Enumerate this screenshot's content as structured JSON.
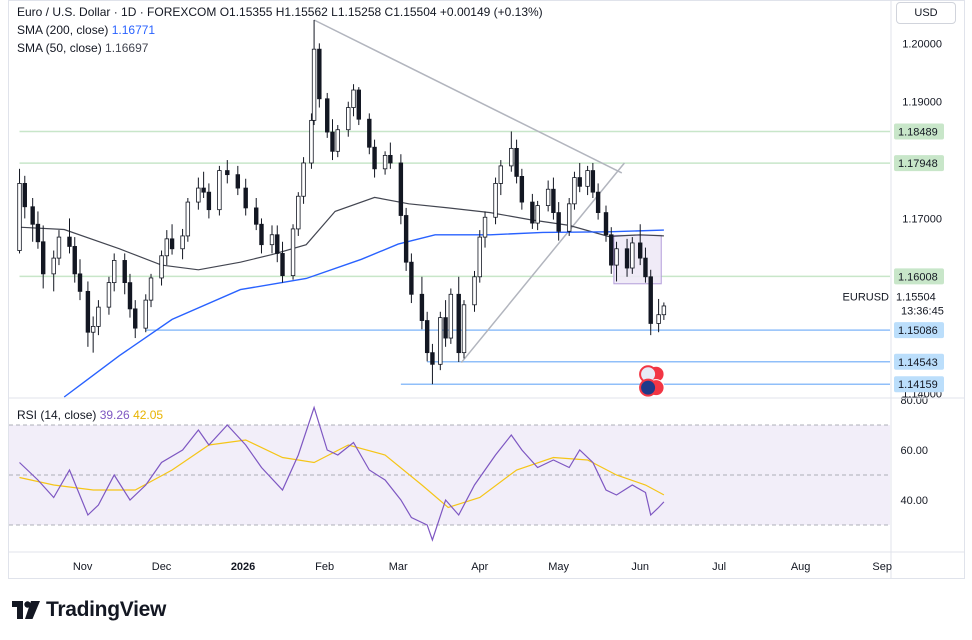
{
  "header": {
    "symbol_line": "Euro / U.S. Dollar · 1D · FOREXCOM",
    "ohlc": "O1.15355  H1.15562  L1.15258  C1.15504",
    "change": "+0.00149 (+0.13%)",
    "sma200_label": "SMA (200, close)",
    "sma200_value": "1.16771",
    "sma50_label": "SMA (50, close)",
    "sma50_value": "1.16697"
  },
  "currency_button": "USD",
  "rsi_legend": {
    "label": "RSI (14, close)",
    "value": "39.26",
    "signal": "42.05"
  },
  "brand": "TradingView",
  "symbol_tag": "EURUSD",
  "countdown": "13:36:45",
  "colors": {
    "candle": "#131722",
    "sma200": "#2962ff",
    "sma50": "#434651",
    "support_green": "#c8e6c9",
    "support_blue": "#90bff9",
    "rsi_line": "#7e57c2",
    "rsi_signal": "#f5c518",
    "rsi_band": "#ede7f6",
    "trendline": "#b2b5be"
  },
  "chart_data": {
    "type": "candlestick",
    "timeframe": "1D",
    "y_range": [
      1.1394,
      1.204
    ],
    "price_ticks": [
      "1.20000",
      "1.19000",
      "1.17000",
      "1.14000"
    ],
    "x_tick_labels": [
      "Nov",
      "Dec",
      "2026",
      "Feb",
      "Mar",
      "Apr",
      "May",
      "Jun",
      "Jul",
      "Aug",
      "Sep"
    ],
    "price_tags": [
      {
        "label": "1.18489",
        "value": 1.18489,
        "kind": "green"
      },
      {
        "label": "1.17948",
        "value": 1.17948,
        "kind": "green"
      },
      {
        "label": "1.16008",
        "value": 1.16008,
        "kind": "green"
      },
      {
        "label": "1.15504",
        "value": 1.15504,
        "kind": "last"
      },
      {
        "label": "1.15086",
        "value": 1.15086,
        "kind": "blue"
      },
      {
        "label": "1.14543",
        "value": 1.14543,
        "kind": "blue"
      },
      {
        "label": "1.14159",
        "value": 1.14159,
        "kind": "blue"
      }
    ],
    "sma50_points": [
      [
        "2025-10-08",
        1.1685
      ],
      [
        "2025-10-25",
        1.1681
      ],
      [
        "2025-11-15",
        1.1648
      ],
      [
        "2025-12-01",
        1.162
      ],
      [
        "2025-12-15",
        1.1612
      ],
      [
        "2025-12-31",
        1.1625
      ],
      [
        "2026-01-12",
        1.1638
      ],
      [
        "2026-01-25",
        1.1655
      ],
      [
        "2026-02-05",
        1.1712
      ],
      [
        "2026-02-20",
        1.1736
      ],
      [
        "2026-03-05",
        1.1725
      ],
      [
        "2026-03-20",
        1.1718
      ],
      [
        "2026-04-05",
        1.171
      ],
      [
        "2026-04-20",
        1.1698
      ],
      [
        "2026-05-05",
        1.1688
      ],
      [
        "2026-05-20",
        1.1669
      ],
      [
        "2026-06-01",
        1.1672
      ],
      [
        "2026-06-10",
        1.167
      ]
    ],
    "sma200_points": [
      [
        "2025-10-25",
        1.1394
      ],
      [
        "2025-11-15",
        1.1465
      ],
      [
        "2025-12-05",
        1.1527
      ],
      [
        "2025-12-31",
        1.1578
      ],
      [
        "2026-01-25",
        1.1597
      ],
      [
        "2026-02-15",
        1.163
      ],
      [
        "2026-03-01",
        1.1656
      ],
      [
        "2026-03-15",
        1.1672
      ],
      [
        "2026-04-05",
        1.1672
      ],
      [
        "2026-04-25",
        1.1676
      ],
      [
        "2026-05-20",
        1.1677
      ],
      [
        "2026-06-10",
        1.168
      ]
    ],
    "horizontal_levels": [
      {
        "value": 1.18489,
        "kind": "green",
        "from": "2025-10-08"
      },
      {
        "value": 1.17948,
        "kind": "green",
        "from": "2025-10-08"
      },
      {
        "value": 1.16008,
        "kind": "green",
        "from": "2025-10-08"
      },
      {
        "value": 1.15086,
        "kind": "blue",
        "from": "2025-11-25"
      },
      {
        "value": 1.14543,
        "kind": "blue",
        "from": "2026-03-12"
      },
      {
        "value": 1.14159,
        "kind": "blue",
        "from": "2026-03-02"
      }
    ],
    "trendlines": [
      {
        "from": [
          "2026-01-28",
          1.204
        ],
        "to": [
          "2026-05-25",
          1.1778
        ]
      },
      {
        "from": [
          "2026-03-25",
          1.1453
        ],
        "to": [
          "2026-05-26",
          1.1795
        ]
      }
    ],
    "highlight_box": {
      "from": "2026-05-22",
      "to": "2026-06-09",
      "top": 1.1671,
      "bottom": 1.1588
    },
    "event_markers": [
      {
        "date": "2026-06-04",
        "value": 1.1433,
        "flag": "US"
      },
      {
        "date": "2026-06-04",
        "value": 1.141,
        "flag": "EU"
      }
    ],
    "candles": [
      [
        "2025-10-08",
        1.1645,
        1.1785,
        1.164,
        1.176
      ],
      [
        "2025-10-10",
        1.176,
        1.1773,
        1.17,
        1.172
      ],
      [
        "2025-10-13",
        1.172,
        1.1735,
        1.166,
        1.169
      ],
      [
        "2025-10-15",
        1.169,
        1.1712,
        1.1648,
        1.166
      ],
      [
        "2025-10-17",
        1.166,
        1.1688,
        1.158,
        1.1605
      ],
      [
        "2025-10-21",
        1.1605,
        1.1645,
        1.1575,
        1.1632
      ],
      [
        "2025-10-23",
        1.1632,
        1.168,
        1.162,
        1.1668
      ],
      [
        "2025-10-27",
        1.1668,
        1.17,
        1.164,
        1.1652
      ],
      [
        "2025-10-29",
        1.1652,
        1.1668,
        1.159,
        1.1605
      ],
      [
        "2025-10-31",
        1.1605,
        1.163,
        1.156,
        1.1575
      ],
      [
        "2025-11-03",
        1.1575,
        1.1592,
        1.148,
        1.1505
      ],
      [
        "2025-11-05",
        1.1505,
        1.1532,
        1.147,
        1.1515
      ],
      [
        "2025-11-07",
        1.1515,
        1.156,
        1.15,
        1.1548
      ],
      [
        "2025-11-11",
        1.1548,
        1.16,
        1.1535,
        1.159
      ],
      [
        "2025-11-13",
        1.159,
        1.164,
        1.1575,
        1.1628
      ],
      [
        "2025-11-17",
        1.1628,
        1.164,
        1.157,
        1.159
      ],
      [
        "2025-11-19",
        1.159,
        1.1605,
        1.153,
        1.1545
      ],
      [
        "2025-11-21",
        1.1545,
        1.156,
        1.1495,
        1.1512
      ],
      [
        "2025-11-25",
        1.1512,
        1.157,
        1.1505,
        1.156
      ],
      [
        "2025-11-27",
        1.156,
        1.1605,
        1.1548,
        1.1598
      ],
      [
        "2025-12-01",
        1.1598,
        1.1645,
        1.1585,
        1.1636
      ],
      [
        "2025-12-03",
        1.1636,
        1.168,
        1.162,
        1.1665
      ],
      [
        "2025-12-05",
        1.1665,
        1.169,
        1.1638,
        1.1648
      ],
      [
        "2025-12-09",
        1.1648,
        1.1682,
        1.163,
        1.167
      ],
      [
        "2025-12-11",
        1.167,
        1.1735,
        1.166,
        1.1728
      ],
      [
        "2025-12-15",
        1.1728,
        1.177,
        1.1715,
        1.1752
      ],
      [
        "2025-12-17",
        1.1752,
        1.178,
        1.1735,
        1.1745
      ],
      [
        "2025-12-19",
        1.1745,
        1.176,
        1.17,
        1.1715
      ],
      [
        "2025-12-23",
        1.1715,
        1.179,
        1.1705,
        1.1782
      ],
      [
        "2025-12-26",
        1.1782,
        1.18,
        1.176,
        1.1775
      ],
      [
        "2025-12-30",
        1.1775,
        1.179,
        1.174,
        1.1752
      ],
      [
        "2026-01-02",
        1.1752,
        1.1768,
        1.1705,
        1.1718
      ],
      [
        "2026-01-06",
        1.1718,
        1.1735,
        1.168,
        1.169
      ],
      [
        "2026-01-08",
        1.169,
        1.17,
        1.164,
        1.1655
      ],
      [
        "2026-01-12",
        1.1655,
        1.1688,
        1.164,
        1.1672
      ],
      [
        "2026-01-14",
        1.1672,
        1.1688,
        1.1625,
        1.164
      ],
      [
        "2026-01-16",
        1.164,
        1.166,
        1.159,
        1.1602
      ],
      [
        "2026-01-20",
        1.1602,
        1.169,
        1.1595,
        1.1682
      ],
      [
        "2026-01-22",
        1.1682,
        1.1745,
        1.167,
        1.1738
      ],
      [
        "2026-01-24",
        1.1738,
        1.1805,
        1.1725,
        1.1795
      ],
      [
        "2026-01-27",
        1.1795,
        1.188,
        1.1785,
        1.1868
      ],
      [
        "2026-01-28",
        1.1868,
        1.204,
        1.186,
        1.199
      ],
      [
        "2026-01-30",
        1.199,
        1.2,
        1.189,
        1.1905
      ],
      [
        "2026-02-02",
        1.1905,
        1.1915,
        1.1838,
        1.1848
      ],
      [
        "2026-02-04",
        1.1848,
        1.187,
        1.18,
        1.1815
      ],
      [
        "2026-02-06",
        1.1815,
        1.186,
        1.1805,
        1.1852
      ],
      [
        "2026-02-10",
        1.1852,
        1.19,
        1.184,
        1.189
      ],
      [
        "2026-02-12",
        1.189,
        1.193,
        1.1875,
        1.192
      ],
      [
        "2026-02-14",
        1.192,
        1.1925,
        1.186,
        1.187
      ],
      [
        "2026-02-18",
        1.187,
        1.188,
        1.181,
        1.1822
      ],
      [
        "2026-02-20",
        1.1822,
        1.1835,
        1.177,
        1.1785
      ],
      [
        "2026-02-24",
        1.1785,
        1.1815,
        1.1775,
        1.1808
      ],
      [
        "2026-02-26",
        1.1808,
        1.183,
        1.1785,
        1.1795
      ],
      [
        "2026-03-02",
        1.1795,
        1.181,
        1.169,
        1.1705
      ],
      [
        "2026-03-04",
        1.1705,
        1.1718,
        1.161,
        1.1625
      ],
      [
        "2026-03-06",
        1.1625,
        1.164,
        1.1555,
        1.157
      ],
      [
        "2026-03-10",
        1.157,
        1.16,
        1.151,
        1.1525
      ],
      [
        "2026-03-12",
        1.1525,
        1.154,
        1.1455,
        1.147
      ],
      [
        "2026-03-14",
        1.147,
        1.1485,
        1.1416,
        1.145
      ],
      [
        "2026-03-17",
        1.145,
        1.154,
        1.144,
        1.153
      ],
      [
        "2026-03-19",
        1.153,
        1.156,
        1.148,
        1.1495
      ],
      [
        "2026-03-21",
        1.1495,
        1.158,
        1.1485,
        1.157
      ],
      [
        "2026-03-24",
        1.157,
        1.16,
        1.1454,
        1.147
      ],
      [
        "2026-03-26",
        1.147,
        1.156,
        1.146,
        1.1552
      ],
      [
        "2026-03-30",
        1.1552,
        1.161,
        1.154,
        1.16
      ],
      [
        "2026-04-01",
        1.16,
        1.168,
        1.159,
        1.1668
      ],
      [
        "2026-04-03",
        1.1668,
        1.1712,
        1.165,
        1.1702
      ],
      [
        "2026-04-07",
        1.1702,
        1.177,
        1.169,
        1.176
      ],
      [
        "2026-04-09",
        1.176,
        1.18,
        1.174,
        1.179
      ],
      [
        "2026-04-13",
        1.179,
        1.1849,
        1.178,
        1.182
      ],
      [
        "2026-04-15",
        1.182,
        1.1835,
        1.176,
        1.1772
      ],
      [
        "2026-04-17",
        1.1772,
        1.1785,
        1.1715,
        1.1728
      ],
      [
        "2026-04-21",
        1.1728,
        1.1742,
        1.1682,
        1.1692
      ],
      [
        "2026-04-23",
        1.1692,
        1.173,
        1.168,
        1.1722
      ],
      [
        "2026-04-27",
        1.1722,
        1.1765,
        1.1712,
        1.175
      ],
      [
        "2026-04-29",
        1.175,
        1.177,
        1.1698,
        1.171
      ],
      [
        "2026-05-01",
        1.171,
        1.1728,
        1.1662,
        1.1678
      ],
      [
        "2026-05-05",
        1.1678,
        1.1735,
        1.167,
        1.1725
      ],
      [
        "2026-05-07",
        1.1725,
        1.178,
        1.1715,
        1.177
      ],
      [
        "2026-05-09",
        1.177,
        1.1795,
        1.1745,
        1.1755
      ],
      [
        "2026-05-12",
        1.1755,
        1.179,
        1.174,
        1.1782
      ],
      [
        "2026-05-14",
        1.1782,
        1.1795,
        1.1735,
        1.1745
      ],
      [
        "2026-05-16",
        1.1745,
        1.176,
        1.1698,
        1.171
      ],
      [
        "2026-05-19",
        1.171,
        1.1722,
        1.166,
        1.1672
      ],
      [
        "2026-05-21",
        1.1672,
        1.1685,
        1.1605,
        1.162
      ],
      [
        "2026-05-23",
        1.162,
        1.166,
        1.1592,
        1.1648
      ],
      [
        "2026-05-27",
        1.1648,
        1.1665,
        1.16,
        1.1615
      ],
      [
        "2026-05-29",
        1.1615,
        1.1668,
        1.1605,
        1.1658
      ],
      [
        "2026-06-01",
        1.1658,
        1.169,
        1.162,
        1.1632
      ],
      [
        "2026-06-03",
        1.1632,
        1.165,
        1.159,
        1.16
      ],
      [
        "2026-06-05",
        1.16,
        1.1612,
        1.15,
        1.152
      ],
      [
        "2026-06-08",
        1.152,
        1.1562,
        1.1505,
        1.1535
      ],
      [
        "2026-06-10",
        1.1535,
        1.1556,
        1.1526,
        1.155
      ]
    ],
    "rsi": {
      "ylim": [
        20,
        80
      ],
      "ticks": [
        "80.00",
        "60.00",
        "40.00"
      ],
      "band": [
        30,
        70
      ],
      "midline": 50,
      "values": [
        [
          "2025-10-08",
          55
        ],
        [
          "2025-10-15",
          48
        ],
        [
          "2025-10-21",
          41
        ],
        [
          "2025-10-27",
          52
        ],
        [
          "2025-11-03",
          34
        ],
        [
          "2025-11-07",
          38
        ],
        [
          "2025-11-13",
          50
        ],
        [
          "2025-11-19",
          40
        ],
        [
          "2025-11-25",
          46
        ],
        [
          "2025-12-01",
          55
        ],
        [
          "2025-12-09",
          60
        ],
        [
          "2025-12-15",
          68
        ],
        [
          "2025-12-19",
          62
        ],
        [
          "2025-12-26",
          70
        ],
        [
          "2026-01-02",
          62
        ],
        [
          "2026-01-08",
          53
        ],
        [
          "2026-01-16",
          44
        ],
        [
          "2026-01-22",
          58
        ],
        [
          "2026-01-28",
          77
        ],
        [
          "2026-02-02",
          60
        ],
        [
          "2026-02-06",
          58
        ],
        [
          "2026-02-12",
          63
        ],
        [
          "2026-02-18",
          52
        ],
        [
          "2026-02-24",
          48
        ],
        [
          "2026-03-02",
          40
        ],
        [
          "2026-03-06",
          33
        ],
        [
          "2026-03-12",
          30
        ],
        [
          "2026-03-14",
          24
        ],
        [
          "2026-03-19",
          40
        ],
        [
          "2026-03-24",
          34
        ],
        [
          "2026-03-30",
          46
        ],
        [
          "2026-04-07",
          58
        ],
        [
          "2026-04-13",
          66
        ],
        [
          "2026-04-17",
          60
        ],
        [
          "2026-04-23",
          53
        ],
        [
          "2026-04-29",
          56
        ],
        [
          "2026-05-05",
          53
        ],
        [
          "2026-05-09",
          60
        ],
        [
          "2026-05-14",
          55
        ],
        [
          "2026-05-19",
          44
        ],
        [
          "2026-05-23",
          42
        ],
        [
          "2026-05-29",
          46
        ],
        [
          "2026-06-03",
          43
        ],
        [
          "2026-06-05",
          34
        ],
        [
          "2026-06-08",
          37
        ],
        [
          "2026-06-10",
          39.26
        ]
      ],
      "signal_values": [
        [
          "2025-10-08",
          49
        ],
        [
          "2025-10-21",
          46
        ],
        [
          "2025-11-05",
          44
        ],
        [
          "2025-11-21",
          44
        ],
        [
          "2025-12-05",
          52
        ],
        [
          "2025-12-19",
          62
        ],
        [
          "2026-01-02",
          64
        ],
        [
          "2026-01-16",
          57
        ],
        [
          "2026-01-28",
          55
        ],
        [
          "2026-02-10",
          62
        ],
        [
          "2026-02-24",
          58
        ],
        [
          "2026-03-10",
          46
        ],
        [
          "2026-03-20",
          37
        ],
        [
          "2026-04-01",
          41
        ],
        [
          "2026-04-15",
          52
        ],
        [
          "2026-04-29",
          57
        ],
        [
          "2026-05-12",
          56
        ],
        [
          "2026-05-23",
          50
        ],
        [
          "2026-06-03",
          46
        ],
        [
          "2026-06-10",
          42.05
        ]
      ]
    }
  }
}
